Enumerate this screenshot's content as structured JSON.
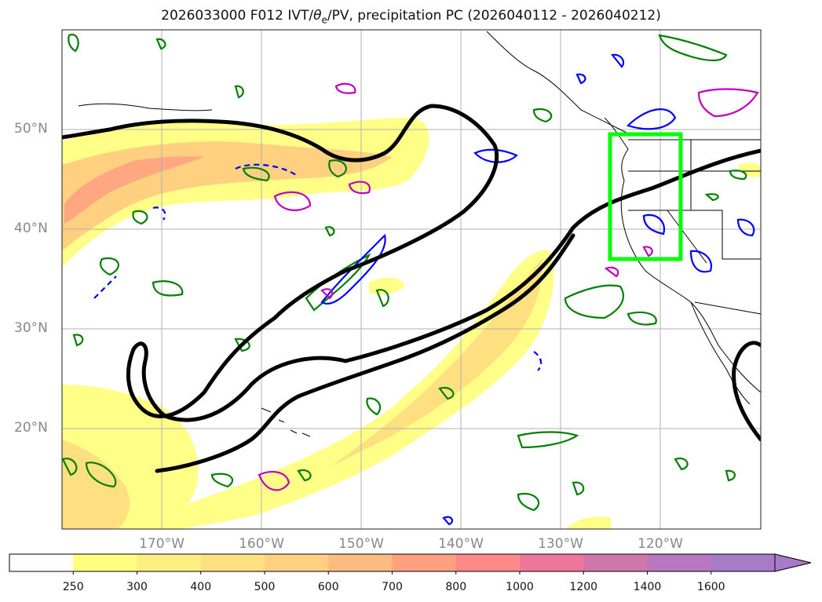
{
  "title": "2026033000 F012 IVT/θe/PV, precipitation PC (2026040112 - 2026040212)",
  "title_parts": {
    "prefix": "2026033000 F012 IVT/",
    "theta": "θ",
    "sub": "e",
    "suffix": "/PV, precipitation PC (2026040112 - 2026040212)"
  },
  "map": {
    "lat_range": [
      10,
      60
    ],
    "lon_range": [
      -180,
      -110
    ],
    "lat_labels": [
      {
        "text": "50°N",
        "lat": 50
      },
      {
        "text": "40°N",
        "lat": 40
      },
      {
        "text": "30°N",
        "lat": 30
      },
      {
        "text": "20°N",
        "lat": 20
      }
    ],
    "lon_labels": [
      {
        "text": "170°W",
        "lon": -170
      },
      {
        "text": "160°W",
        "lon": -160
      },
      {
        "text": "150°W",
        "lon": -150
      },
      {
        "text": "140°W",
        "lon": -140
      },
      {
        "text": "130°W",
        "lon": -130
      },
      {
        "text": "120°W",
        "lon": -120
      }
    ],
    "highlight_box": {
      "lat_min": 37,
      "lat_max": 49.5,
      "lon_min": -125,
      "lon_max": -117.8,
      "color": "#00ff00"
    },
    "colors": {
      "theta_e_contour": "#000000",
      "pv_contour": "#0000ff",
      "precip_contour": "#008000",
      "pv_high": "#c000c0"
    }
  },
  "colorbar": {
    "levels": [
      "250",
      "300",
      "400",
      "500",
      "600",
      "700",
      "800",
      "1000",
      "1200",
      "1400",
      "1600"
    ],
    "colors": [
      "#ffffff",
      "#ffff80",
      "#ffee80",
      "#ffe080",
      "#ffd080",
      "#ffbb80",
      "#ffa080",
      "#ff8888",
      "#ee7799",
      "#d077aa",
      "#b878c0",
      "#a77bc8"
    ]
  }
}
